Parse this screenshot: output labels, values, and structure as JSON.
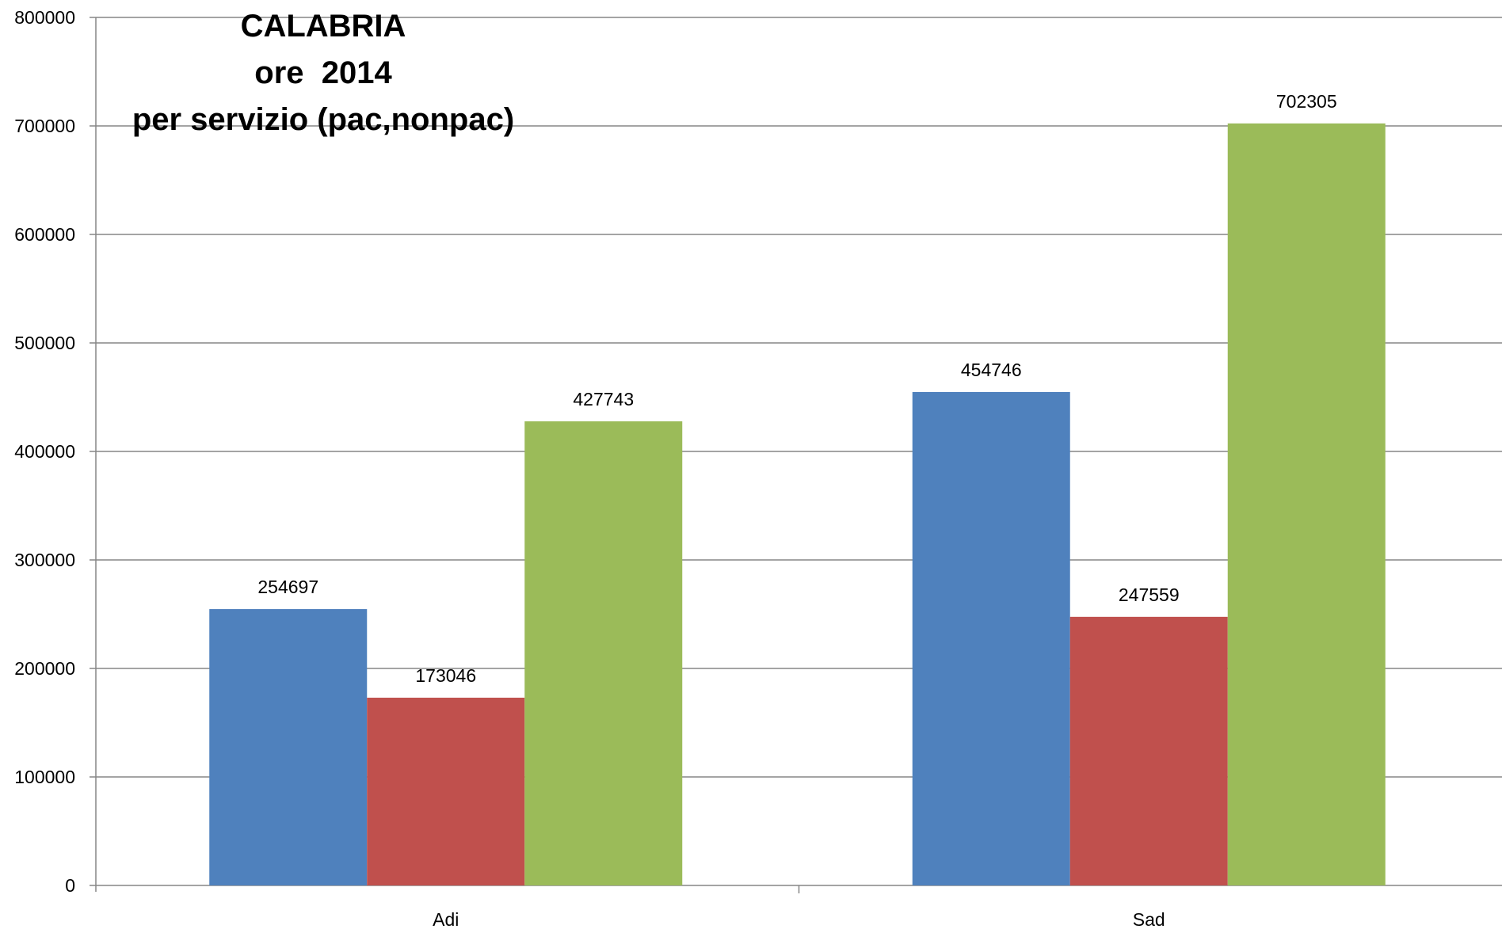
{
  "chart_data": {
    "type": "bar",
    "title_lines": [
      "CALABRIA",
      "ore  2014",
      "per servizio (pac,nonpac)"
    ],
    "categories": [
      "Adi",
      "Sad"
    ],
    "series": [
      {
        "values": [
          254697,
          454746
        ],
        "color": "#4F81BD"
      },
      {
        "values": [
          173046,
          247559
        ],
        "color": "#C0504D"
      },
      {
        "values": [
          427743,
          702305
        ],
        "color": "#9BBB59"
      }
    ],
    "ylim": [
      0,
      800000
    ],
    "yticks": [
      "0",
      "100000",
      "200000",
      "300000",
      "400000",
      "500000",
      "600000",
      "700000",
      "800000"
    ],
    "grid": true,
    "data_labels": true,
    "legend": "none"
  }
}
